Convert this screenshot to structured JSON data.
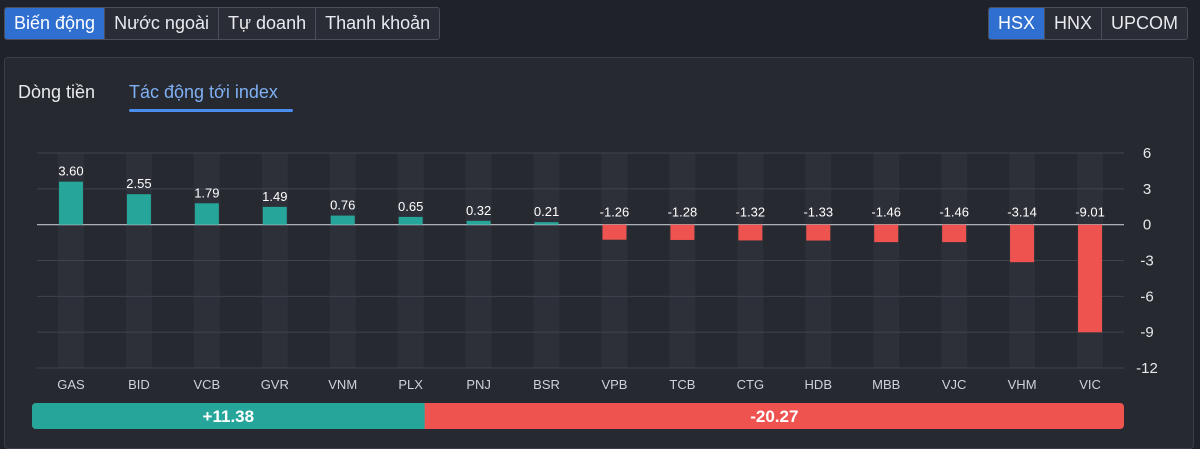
{
  "tabs": [
    "Biến động",
    "Nước ngoài",
    "Tự doanh",
    "Thanh khoản"
  ],
  "active_tab": 0,
  "exchanges": [
    "HSX",
    "HNX",
    "UPCOM"
  ],
  "active_exchange": 0,
  "subtabs": [
    "Dòng tiền",
    "Tác động tới index"
  ],
  "active_subtab": 1,
  "colors": {
    "positive": "#26a69a",
    "negative": "#ef5350",
    "accent": "#2f6fd0"
  },
  "chart_data": {
    "type": "bar",
    "title": "Tác động tới index",
    "categories": [
      "GAS",
      "BID",
      "VCB",
      "GVR",
      "VNM",
      "PLX",
      "PNJ",
      "BSR",
      "VPB",
      "TCB",
      "CTG",
      "HDB",
      "MBB",
      "VJC",
      "VHM",
      "VIC"
    ],
    "values": [
      3.6,
      2.55,
      1.79,
      1.49,
      0.76,
      0.65,
      0.32,
      0.21,
      -1.26,
      -1.28,
      -1.32,
      -1.33,
      -1.46,
      -1.46,
      -3.14,
      -9.01
    ],
    "value_labels": [
      "3.60",
      "2.55",
      "1.79",
      "1.49",
      "0.76",
      "0.65",
      "0.32",
      "0.21",
      "-1.26",
      "-1.28",
      "-1.32",
      "-1.33",
      "-1.46",
      "-1.46",
      "-3.14",
      "-9.01"
    ],
    "ylim": [
      -12,
      6
    ],
    "yticks": [
      6,
      3,
      0,
      -3,
      -6,
      -9,
      -12
    ],
    "ytick_labels": [
      "6",
      "3",
      "0",
      "-3",
      "-6",
      "-9",
      "-12"
    ],
    "y_axis_position": "right",
    "totals": {
      "positive": 11.38,
      "negative": -20.27,
      "positive_label": "+11.38",
      "negative_label": "-20.27"
    }
  }
}
